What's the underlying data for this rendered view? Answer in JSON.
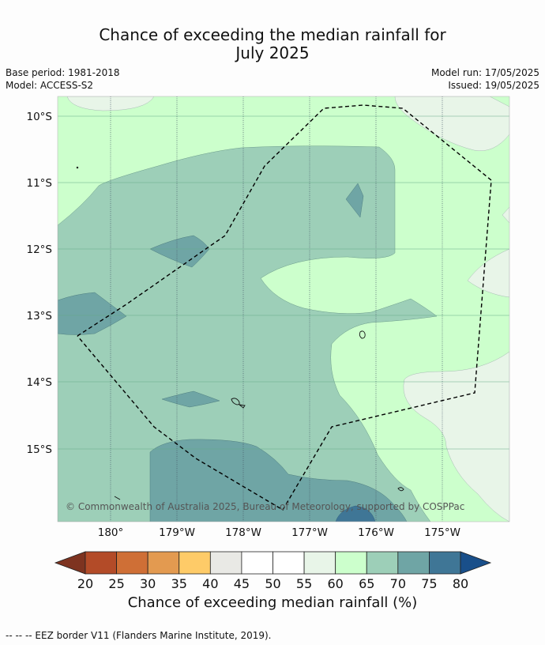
{
  "header": {
    "title_line1": "Chance of exceeding the median rainfall for",
    "title_line2": "July 2025",
    "base_period": "Base period: 1981-2018",
    "model": "Model: ACCESS-S2",
    "model_run": "Model run: 17/05/2025",
    "issued": "Issued: 19/05/2025"
  },
  "map": {
    "lat_labels": [
      "10°S",
      "11°S",
      "12°S",
      "13°S",
      "14°S",
      "15°S"
    ],
    "lon_labels": [
      "180°",
      "179°W",
      "178°W",
      "177°W",
      "176°W",
      "175°W"
    ],
    "copyright": "© Commonwealth of Australia 2025, Bureau of Meteorology, supported by COSPPac",
    "colors": {
      "c55_60": "#e8f5e8",
      "c60_65": "#ccffcc",
      "c65_70": "#9dcfb8",
      "c70_75": "#6fa5a5",
      "c75_80": "#3f7696"
    }
  },
  "colorbar": {
    "ticks": [
      "20",
      "25",
      "30",
      "35",
      "40",
      "45",
      "50",
      "55",
      "60",
      "65",
      "70",
      "75",
      "80"
    ],
    "colors": [
      "#7e3320",
      "#b34b28",
      "#cf6f36",
      "#e39a50",
      "#fecb68",
      "#e9e9e5",
      "#ffffff",
      "#ffffff",
      "#e8f5e8",
      "#ccffcc",
      "#9dcfb8",
      "#6fa5a5",
      "#3f7696",
      "#194f8a"
    ],
    "title": "Chance of exceeding median rainfall (%)"
  },
  "footnote": "--  --  -- EEZ border V11 (Flanders Marine Institute, 2019)."
}
